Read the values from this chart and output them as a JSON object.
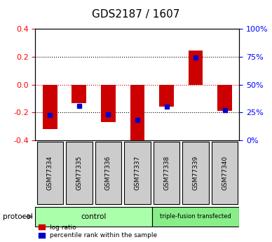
{
  "title": "GDS2187 / 1607",
  "samples": [
    "GSM77334",
    "GSM77335",
    "GSM77336",
    "GSM77337",
    "GSM77338",
    "GSM77339",
    "GSM77340"
  ],
  "log_ratio": [
    -0.32,
    -0.13,
    -0.27,
    -0.43,
    -0.16,
    0.245,
    -0.19
  ],
  "percentile_rank": [
    -0.22,
    -0.155,
    -0.215,
    -0.255,
    -0.16,
    0.195,
    -0.185
  ],
  "ylim": [
    -0.4,
    0.4
  ],
  "yticks_left": [
    -0.4,
    -0.2,
    0.0,
    0.2,
    0.4
  ],
  "yticks_right": [
    0,
    25,
    50,
    75,
    100
  ],
  "yticks_right_vals": [
    -0.4,
    -0.2,
    0.0,
    0.2,
    0.4
  ],
  "bar_color": "#cc0000",
  "dot_color": "#0000cc",
  "control_samples": [
    "GSM77334",
    "GSM77335",
    "GSM77336",
    "GSM77337"
  ],
  "triple_samples": [
    "GSM77338",
    "GSM77339",
    "GSM77340"
  ],
  "control_label": "control",
  "triple_label": "triple-fusion transfected",
  "protocol_label": "protocol",
  "control_color": "#aaffaa",
  "triple_color": "#88ee88",
  "sample_box_color": "#cccccc",
  "legend_log_ratio": "log ratio",
  "legend_pct": "percentile rank within the sample",
  "zero_line_color": "#cc0000",
  "grid_color": "#000000",
  "title_fontsize": 11,
  "axis_label_fontsize": 8,
  "tick_fontsize": 8
}
